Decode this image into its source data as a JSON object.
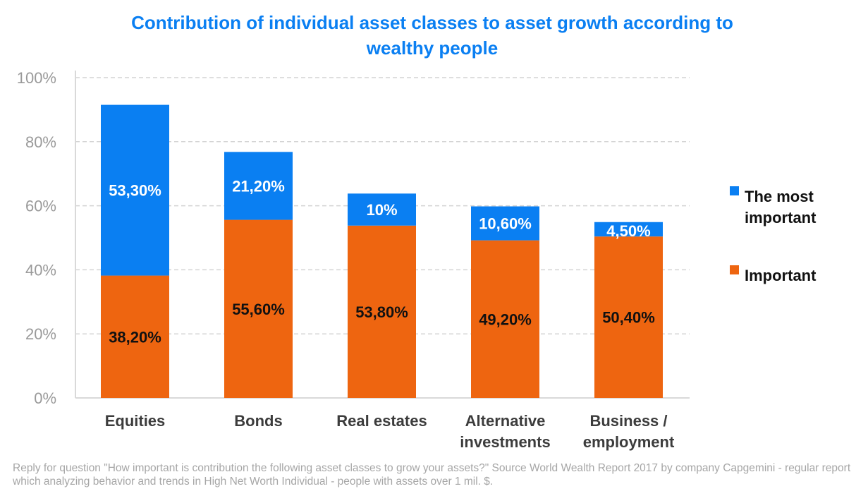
{
  "chart_data": {
    "type": "bar",
    "stacked": true,
    "title": "Contribution of individual asset classes to asset growth according to wealthy people",
    "title_lines": [
      "Contribution of individual asset classes to asset growth according to",
      "wealthy people"
    ],
    "categories": [
      "Equities",
      "Bonds",
      "Real estates",
      "Alternative investments",
      "Business / employment"
    ],
    "category_lines": [
      [
        "Equities"
      ],
      [
        "Bonds"
      ],
      [
        "Real estates"
      ],
      [
        "Alternative",
        "investments"
      ],
      [
        "Business /",
        "employment"
      ]
    ],
    "series": [
      {
        "name": "Important",
        "values": [
          38.2,
          55.6,
          53.8,
          49.2,
          50.4
        ],
        "labels": [
          "38,20%",
          "55,60%",
          "53,80%",
          "49,20%",
          "50,40%"
        ],
        "color": "#EE6510"
      },
      {
        "name": "The most important",
        "values": [
          53.3,
          21.2,
          10,
          10.6,
          4.5
        ],
        "labels": [
          "53,30%",
          "21,20%",
          "10%",
          "10,60%",
          "4,50%"
        ],
        "color": "#0A7FF2"
      }
    ],
    "legend": [
      {
        "lines": [
          "The most",
          "important"
        ],
        "color": "#0A7FF2"
      },
      {
        "lines": [
          "Important"
        ],
        "color": "#EE6510"
      }
    ],
    "legend_position": "right",
    "ylim": [
      0,
      100
    ],
    "yticks": [
      "0%",
      "20%",
      "40%",
      "60%",
      "80%",
      "100%"
    ],
    "grid": true,
    "xlabel": "",
    "ylabel": ""
  },
  "footnote": "Reply for question \"How important is contribution the following asset classes to grow your assets?\" Source World Wealth Report 2017 by company Capgemini - regular report which analyzing behavior and trends in High Net Worth Individual - people with assets over 1 mil. $."
}
